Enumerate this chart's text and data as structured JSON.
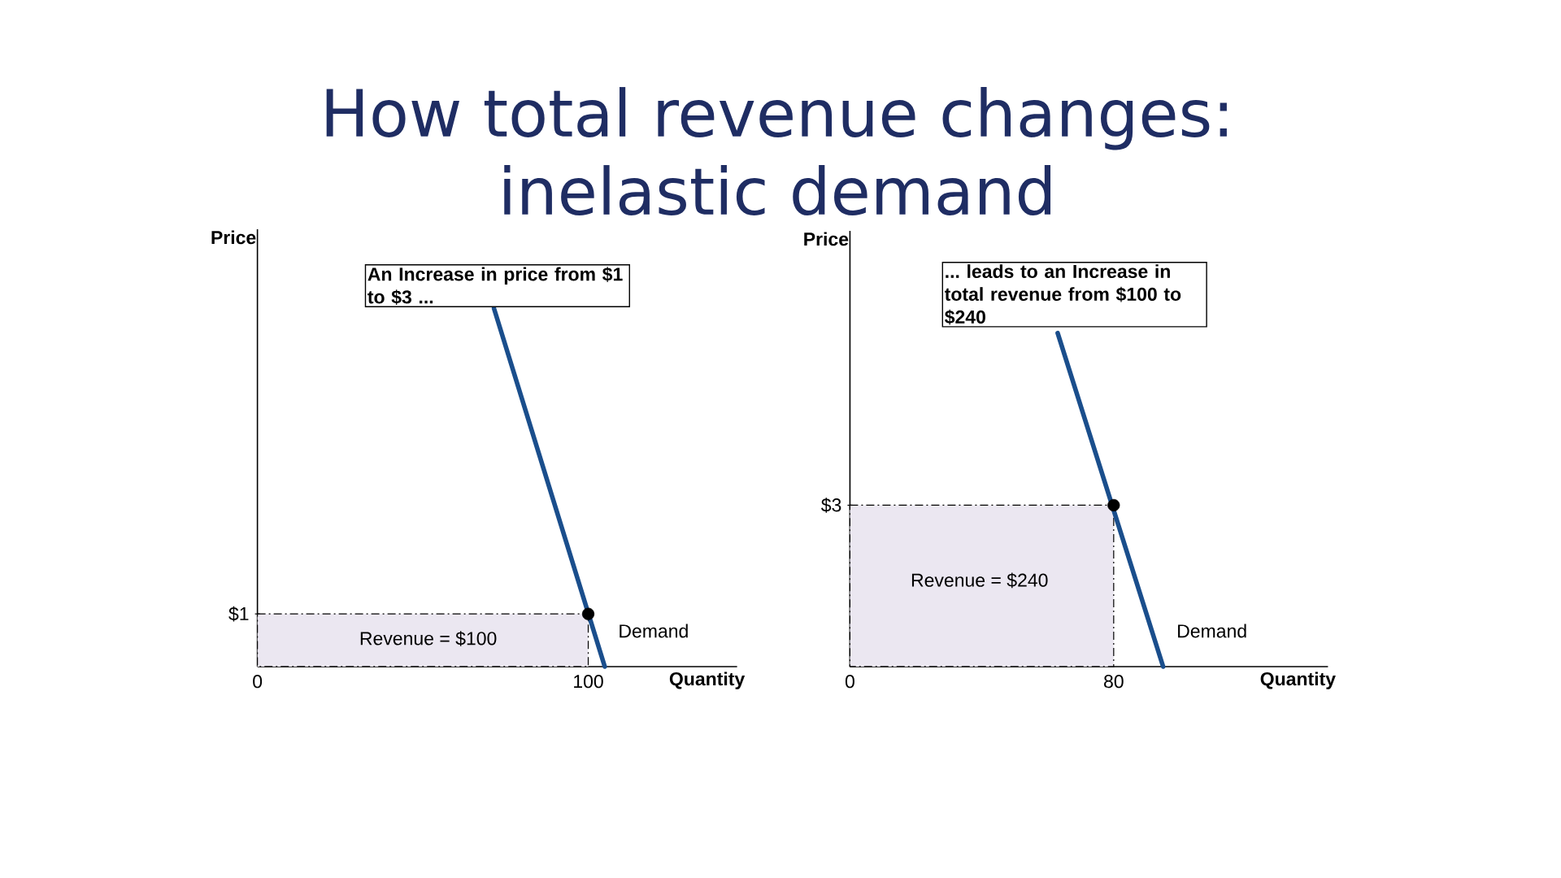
{
  "chart_data": [
    {
      "type": "line",
      "title": "How total revenue changes: inelastic demand",
      "xlabel": "Quantity",
      "ylabel": "Price",
      "xlim": [
        0,
        145
      ],
      "ylim": [
        0,
        8.3
      ],
      "xticks": [
        0,
        100
      ],
      "yticks": [
        {
          "value": 0,
          "label": null
        },
        {
          "value": 1,
          "label": "$1"
        }
      ],
      "series": [
        {
          "type": "area",
          "x": [
            0,
            100
          ],
          "values": [
            1,
            1
          ],
          "color": "#ebe7f1",
          "line_style": "dashed"
        },
        {
          "name": "Demand",
          "x": [
            71.5,
            105
          ],
          "values": [
            6.8,
            0
          ],
          "color": "#1a4e8c"
        },
        {
          "type": "scatter",
          "x": [
            100
          ],
          "values": [
            1
          ],
          "color": "#000000",
          "marker": "circle"
        }
      ],
      "annotations": [
        "An Increase in price from $1 to $3 ...",
        "Revenue = $100"
      ]
    },
    {
      "type": "line",
      "xlabel": "Quantity",
      "ylabel": "Price",
      "xlim": [
        0,
        145
      ],
      "ylim": [
        0,
        8.1
      ],
      "xticks": [
        0,
        80
      ],
      "yticks": [
        {
          "value": 0,
          "label": null
        },
        {
          "value": 3,
          "label": "$3"
        }
      ],
      "series": [
        {
          "type": "area",
          "x": [
            0,
            80
          ],
          "values": [
            3,
            3
          ],
          "color": "#ebe7f1",
          "line_style": "dashed"
        },
        {
          "name": "Demand",
          "x": [
            63,
            95
          ],
          "values": [
            6.2,
            0
          ],
          "color": "#1a4e8c"
        },
        {
          "type": "scatter",
          "x": [
            80
          ],
          "values": [
            3
          ],
          "color": "#000000",
          "marker": "circle"
        }
      ],
      "annotations": [
        "... leads to an Increase in total revenue from $100 to $240",
        "Revenue = $240"
      ]
    }
  ]
}
